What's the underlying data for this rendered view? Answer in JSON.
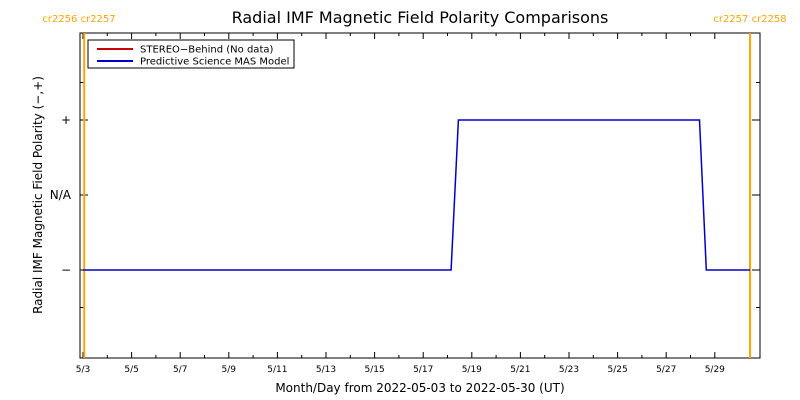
{
  "chart_data": {
    "type": "line",
    "title": "Radial IMF Magnetic Field Polarity Comparisons",
    "xlabel": "Month/Day from 2022-05-03 to 2022-05-30 (UT)",
    "ylabel": "Radial IMF Magnetic Field Polarity (−,+)",
    "x_domain_days": [
      0,
      27.5
    ],
    "x_ticks": [
      {
        "day": 0,
        "label": "5/3"
      },
      {
        "day": 2,
        "label": "5/5"
      },
      {
        "day": 4,
        "label": "5/7"
      },
      {
        "day": 6,
        "label": "5/9"
      },
      {
        "day": 8,
        "label": "5/11"
      },
      {
        "day": 10,
        "label": "5/13"
      },
      {
        "day": 12,
        "label": "5/15"
      },
      {
        "day": 14,
        "label": "5/17"
      },
      {
        "day": 16,
        "label": "5/19"
      },
      {
        "day": 18,
        "label": "5/21"
      },
      {
        "day": 20,
        "label": "5/23"
      },
      {
        "day": 22,
        "label": "5/25"
      },
      {
        "day": 24,
        "label": "5/27"
      },
      {
        "day": 26,
        "label": "5/29"
      }
    ],
    "ylim": [
      -2,
      2
    ],
    "y_ticks": [
      {
        "value": 1,
        "label": "+"
      },
      {
        "value": 0,
        "label": "N/A"
      },
      {
        "value": -1,
        "label": "−"
      }
    ],
    "series": [
      {
        "name": "STEREO−Behind (No data)",
        "color": "#cc0000",
        "points": []
      },
      {
        "name": "Predictive Science MAS Model",
        "color": "#0000cc",
        "points": [
          {
            "x": 0.0,
            "y": -1
          },
          {
            "x": 15.15,
            "y": -1
          },
          {
            "x": 15.45,
            "y": 1
          },
          {
            "x": 25.37,
            "y": 1
          },
          {
            "x": 25.65,
            "y": -1
          },
          {
            "x": 27.45,
            "y": -1
          }
        ]
      }
    ],
    "carrington_markers": [
      {
        "day": 0.05,
        "label": "cr2256 cr2257",
        "side": "left"
      },
      {
        "day": 27.45,
        "label": "cr2257 cr2258",
        "side": "right"
      }
    ],
    "marker_color": "#ffa500",
    "legend_placement": "top-left"
  }
}
